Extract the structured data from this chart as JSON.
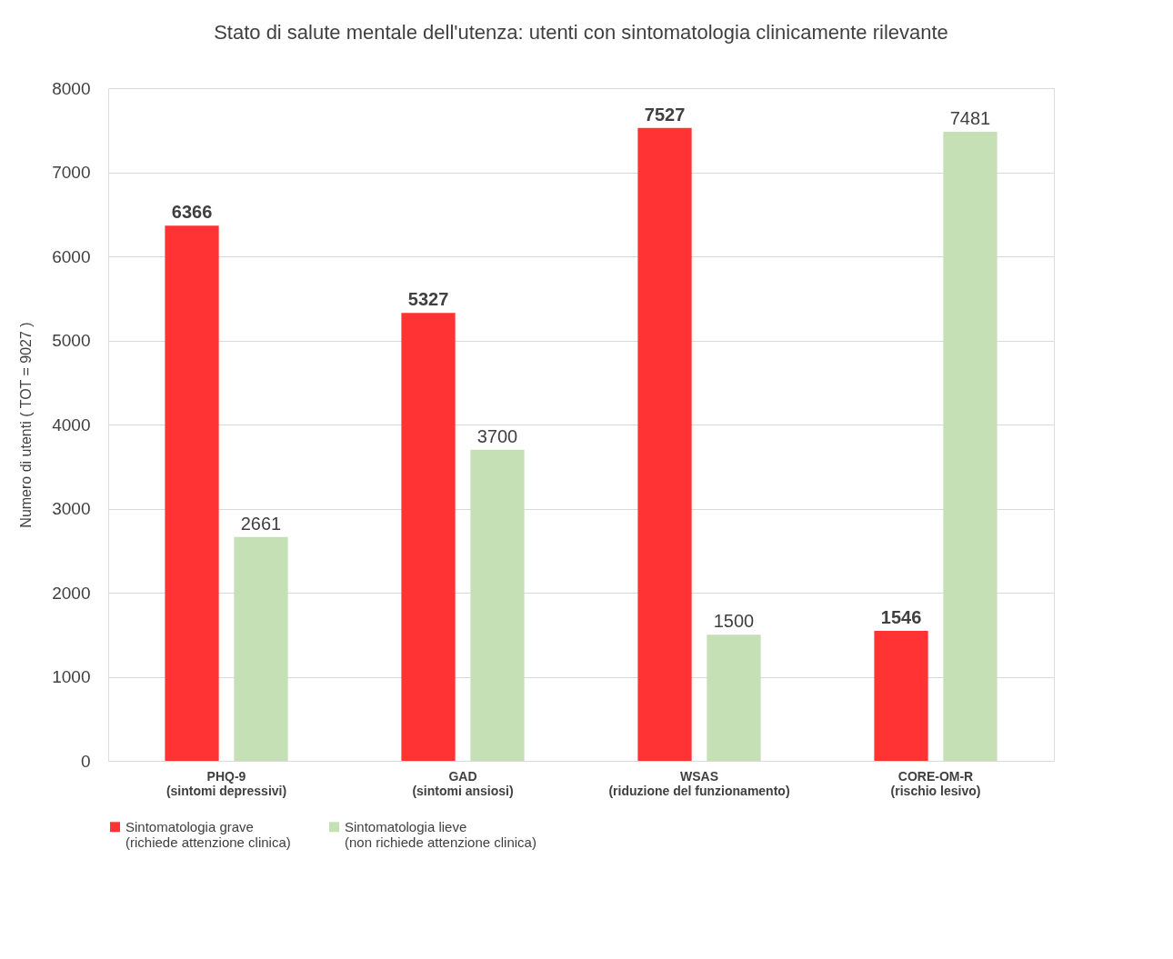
{
  "chart_data": {
    "type": "bar",
    "title": "Stato di salute mentale dell'utenza: utenti con sintomatologia clinicamente rilevante",
    "ylabel": "Numero di utenti ( TOT = 9027 )",
    "categories": [
      "PHQ-9\n(sintomi depressivi)",
      "GAD\n(sintomi ansiosi)",
      "WSAS\n(riduzione del funzionamento)",
      "CORE-OM-R\n(rischio lesivo)"
    ],
    "series": [
      {
        "name": "Sintomatologia grave\n(richiede attenzione clinica)",
        "color": "#ff3333",
        "values": [
          6366,
          5327,
          7527,
          1546
        ]
      },
      {
        "name": "Sintomatologia lieve\n(non richiede attenzione clinica)",
        "color": "#c5e0b4",
        "values": [
          2661,
          3700,
          1500,
          7481
        ]
      }
    ],
    "ylim": [
      0,
      8000
    ],
    "yticks": [
      0,
      1000,
      2000,
      3000,
      4000,
      5000,
      6000,
      7000,
      8000
    ],
    "grid": "y",
    "legend": "bottom",
    "data_labels": true
  }
}
